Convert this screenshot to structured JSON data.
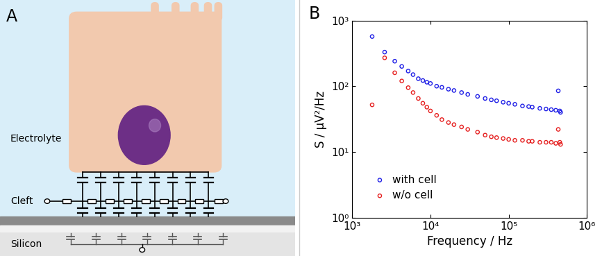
{
  "diagram": {
    "panel": "A",
    "region_labels": [
      "Electrolyte",
      "Cleft",
      "Silicon"
    ]
  },
  "chart_panel": "B",
  "chart_data": {
    "type": "scatter",
    "x_label": "Frequency / Hz",
    "y_label": "S / µV²/Hz",
    "log": true,
    "legend": "lower left",
    "marker": "circle",
    "x": [
      1800,
      2600,
      3500,
      4300,
      5200,
      6000,
      7000,
      8000,
      9000,
      10000,
      12000,
      14000,
      17000,
      20000,
      25000,
      30000,
      40000,
      50000,
      60000,
      70000,
      85000,
      100000,
      120000,
      150000,
      180000,
      200000,
      250000,
      300000,
      350000,
      400000,
      430000,
      450000,
      460000
    ],
    "series": [
      {
        "name": "with cell",
        "color": "#1f1fe6",
        "values": [
          570,
          330,
          240,
          200,
          170,
          150,
          130,
          122,
          115,
          110,
          100,
          96,
          90,
          86,
          80,
          75,
          70,
          65,
          62,
          60,
          57,
          55,
          53,
          50,
          49,
          48,
          46,
          45,
          44,
          43,
          85,
          42,
          40
        ]
      },
      {
        "name": "w/o cell",
        "color": "#e62020",
        "values": [
          52,
          270,
          160,
          120,
          95,
          80,
          65,
          55,
          48,
          42,
          36,
          31,
          28,
          26,
          24,
          22,
          20,
          18,
          17,
          16.5,
          16,
          15.5,
          15,
          15,
          14.5,
          14.5,
          14,
          14,
          14,
          13.5,
          22,
          14,
          13
        ]
      }
    ],
    "xlim": [
      1000,
      1000000
    ],
    "xticks": [
      {
        "value": 1000,
        "label": "10³"
      },
      {
        "value": 10000,
        "label": "10⁴"
      },
      {
        "value": 100000,
        "label": "10⁵"
      },
      {
        "value": 1000000,
        "label": "10⁶"
      }
    ],
    "ylim": [
      1,
      1000
    ],
    "yticks": [
      {
        "value": 1,
        "label": "10⁰"
      },
      {
        "value": 10,
        "label": "10¹"
      },
      {
        "value": 100,
        "label": "10²"
      },
      {
        "value": 1000,
        "label": "10³"
      }
    ]
  }
}
